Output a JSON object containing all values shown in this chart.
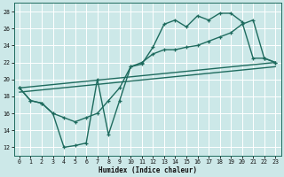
{
  "xlabel": "Humidex (Indice chaleur)",
  "bg_color": "#cce8e8",
  "grid_color": "#b8d8d8",
  "line_color": "#1e6b5e",
  "xlim": [
    -0.5,
    23.5
  ],
  "ylim": [
    11,
    29
  ],
  "xticks": [
    0,
    1,
    2,
    3,
    4,
    5,
    6,
    7,
    8,
    9,
    10,
    11,
    12,
    13,
    14,
    15,
    16,
    17,
    18,
    19,
    20,
    21,
    22,
    23
  ],
  "yticks": [
    12,
    14,
    16,
    18,
    20,
    22,
    24,
    26,
    28
  ],
  "line1_x": [
    0,
    1,
    2,
    3,
    4,
    5,
    6,
    7,
    8,
    9,
    10,
    11,
    12,
    13,
    14,
    15,
    16,
    17,
    18,
    19,
    20,
    21,
    22,
    23
  ],
  "line1_y": [
    19.0,
    17.5,
    17.2,
    16.0,
    12.0,
    12.2,
    12.5,
    20.0,
    13.5,
    17.5,
    21.5,
    21.8,
    23.8,
    26.5,
    27.0,
    26.2,
    27.5,
    27.0,
    27.8,
    27.8,
    26.8,
    22.5,
    22.5,
    22.0
  ],
  "line2_x": [
    0,
    1,
    2,
    3,
    4,
    5,
    6,
    7,
    8,
    9,
    10,
    11,
    12,
    13,
    14,
    15,
    16,
    17,
    18,
    19,
    20,
    21,
    22,
    23
  ],
  "line2_y": [
    19.0,
    17.5,
    17.2,
    16.0,
    15.5,
    15.0,
    15.5,
    16.0,
    17.5,
    19.0,
    21.5,
    22.0,
    23.0,
    23.5,
    23.5,
    23.8,
    24.0,
    24.5,
    25.0,
    25.5,
    26.5,
    27.0,
    22.5,
    22.0
  ],
  "diag1_x0": 0,
  "diag1_y0": 19.0,
  "diag1_x1": 23,
  "diag1_y1": 22.0,
  "diag2_x0": 0,
  "diag2_y0": 18.5,
  "diag2_x1": 23,
  "diag2_y1": 21.5
}
